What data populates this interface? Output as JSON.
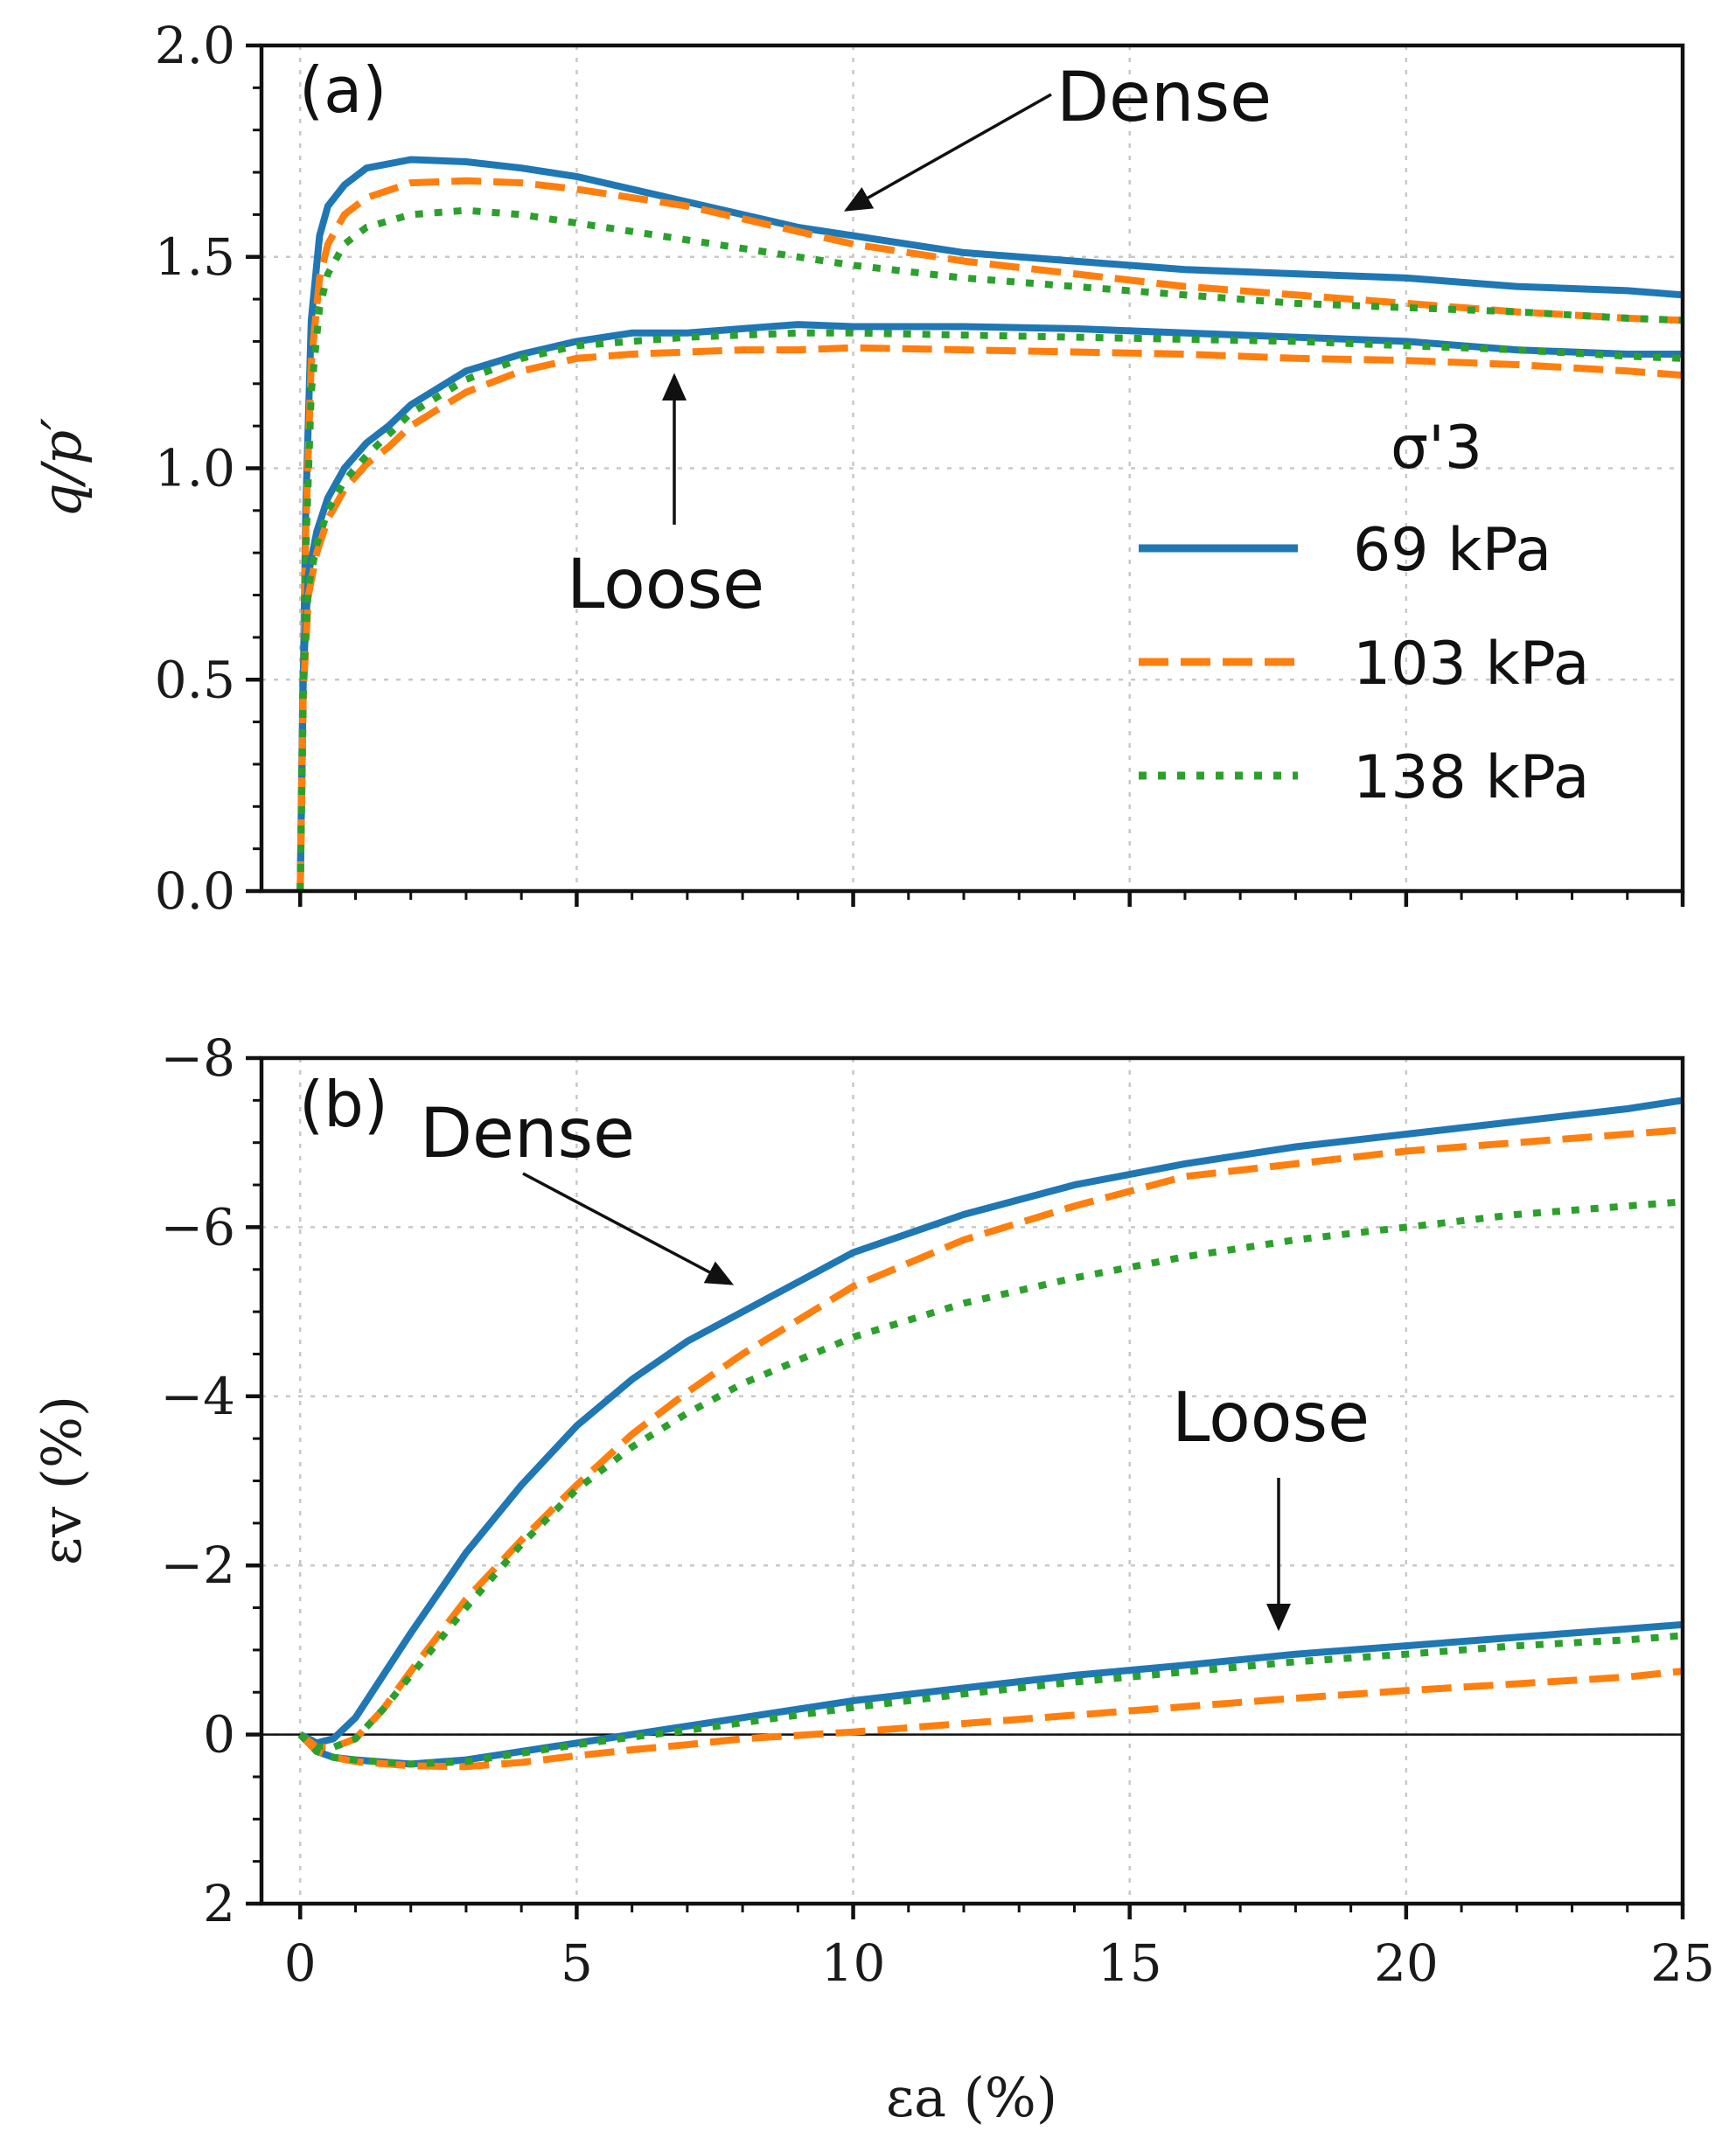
{
  "figure": {
    "xlabel": "εa (%)",
    "x_ticks": [
      "0",
      "5",
      "10",
      "15",
      "20",
      "25"
    ],
    "legend": {
      "title": "σ'3",
      "entries": [
        "69 kPa",
        "103 kPa",
        "138 kPa"
      ]
    },
    "colors": {
      "69 kPa": "#1f77b4",
      "103 kPa": "#ff7f0e",
      "138 kPa": "#2ca02c"
    }
  },
  "chart_data": [
    {
      "type": "line",
      "panel": "(a)",
      "title": "",
      "xlabel": "",
      "ylabel": "q/p′",
      "xlim": [
        -0.7,
        25
      ],
      "ylim": [
        0,
        2
      ],
      "y_ticks": [
        "0.0",
        "0.5",
        "1.0",
        "1.5",
        "2.0"
      ],
      "annotations": [
        {
          "text": "Dense",
          "arrow_to": [
            9.9,
            1.6
          ]
        },
        {
          "text": "Loose",
          "arrow_to": [
            6.6,
            1.26
          ]
        }
      ],
      "series": [
        {
          "name": "69 kPa",
          "group": "Dense",
          "x": [
            0,
            0.1,
            0.2,
            0.35,
            0.5,
            0.8,
            1.2,
            2,
            3,
            4,
            5,
            6,
            7,
            8,
            9,
            10,
            12,
            14,
            16,
            18,
            20,
            22,
            24,
            25
          ],
          "y": [
            0,
            0.9,
            1.35,
            1.55,
            1.62,
            1.67,
            1.71,
            1.73,
            1.725,
            1.71,
            1.69,
            1.66,
            1.63,
            1.6,
            1.57,
            1.55,
            1.51,
            1.49,
            1.47,
            1.46,
            1.45,
            1.43,
            1.42,
            1.41
          ]
        },
        {
          "name": "103 kPa",
          "group": "Dense",
          "x": [
            0,
            0.1,
            0.2,
            0.35,
            0.5,
            0.8,
            1.2,
            2,
            3,
            4,
            5,
            6,
            7,
            8,
            9,
            10,
            12,
            14,
            16,
            18,
            20,
            22,
            24,
            25
          ],
          "y": [
            0,
            0.85,
            1.25,
            1.45,
            1.53,
            1.6,
            1.64,
            1.675,
            1.68,
            1.675,
            1.66,
            1.64,
            1.62,
            1.59,
            1.56,
            1.53,
            1.49,
            1.46,
            1.43,
            1.41,
            1.39,
            1.37,
            1.355,
            1.35
          ]
        },
        {
          "name": "138 kPa",
          "group": "Dense",
          "x": [
            0,
            0.1,
            0.2,
            0.35,
            0.5,
            0.8,
            1.2,
            2,
            3,
            4,
            5,
            6,
            7,
            8,
            9,
            10,
            12,
            14,
            16,
            18,
            20,
            22,
            24,
            25
          ],
          "y": [
            0,
            0.8,
            1.18,
            1.38,
            1.46,
            1.53,
            1.57,
            1.6,
            1.61,
            1.6,
            1.58,
            1.56,
            1.54,
            1.52,
            1.5,
            1.48,
            1.45,
            1.43,
            1.41,
            1.39,
            1.38,
            1.37,
            1.355,
            1.35
          ]
        },
        {
          "name": "69 kPa",
          "group": "Loose",
          "x": [
            0,
            0.05,
            0.15,
            0.3,
            0.5,
            0.8,
            1.2,
            1.6,
            2,
            3,
            4,
            5,
            6,
            7,
            8,
            9,
            10,
            12,
            14,
            16,
            18,
            20,
            22,
            24,
            25
          ],
          "y": [
            0,
            0.5,
            0.75,
            0.85,
            0.93,
            1.0,
            1.06,
            1.1,
            1.15,
            1.23,
            1.27,
            1.3,
            1.32,
            1.32,
            1.33,
            1.34,
            1.335,
            1.335,
            1.33,
            1.32,
            1.31,
            1.3,
            1.28,
            1.27,
            1.27
          ]
        },
        {
          "name": "103 kPa",
          "group": "Loose",
          "x": [
            0,
            0.05,
            0.15,
            0.3,
            0.5,
            0.8,
            1.2,
            1.6,
            2,
            3,
            4,
            5,
            6,
            7,
            8,
            9,
            10,
            12,
            14,
            16,
            18,
            20,
            22,
            24,
            25
          ],
          "y": [
            0,
            0.45,
            0.7,
            0.8,
            0.88,
            0.95,
            1.01,
            1.05,
            1.1,
            1.18,
            1.23,
            1.26,
            1.27,
            1.275,
            1.28,
            1.28,
            1.285,
            1.28,
            1.275,
            1.27,
            1.26,
            1.255,
            1.245,
            1.23,
            1.22
          ]
        },
        {
          "name": "138 kPa",
          "group": "Loose",
          "x": [
            0,
            0.05,
            0.15,
            0.3,
            0.5,
            0.8,
            1.2,
            1.6,
            2,
            3,
            4,
            5,
            6,
            7,
            8,
            9,
            10,
            12,
            14,
            16,
            18,
            20,
            22,
            24,
            25
          ],
          "y": [
            0,
            0.48,
            0.72,
            0.82,
            0.9,
            0.97,
            1.03,
            1.08,
            1.13,
            1.21,
            1.26,
            1.29,
            1.3,
            1.31,
            1.315,
            1.32,
            1.32,
            1.315,
            1.31,
            1.305,
            1.3,
            1.29,
            1.28,
            1.265,
            1.26
          ]
        }
      ]
    },
    {
      "type": "line",
      "panel": "(b)",
      "title": "",
      "xlabel": "εa (%)",
      "ylabel": "εv (%)",
      "xlim": [
        -0.7,
        25
      ],
      "ylim": [
        2,
        -8
      ],
      "y_ticks": [
        "−8",
        "−6",
        "−4",
        "−2",
        "0",
        "2"
      ],
      "hline": 0,
      "annotations": [
        {
          "text": "Dense",
          "arrow_to": [
            7.9,
            -5.1
          ]
        },
        {
          "text": "Loose",
          "arrow_to": [
            17.8,
            -1.15
          ]
        }
      ],
      "series": [
        {
          "name": "69 kPa",
          "group": "Dense",
          "x": [
            0,
            0.3,
            0.6,
            1,
            1.5,
            2,
            3,
            4,
            5,
            6,
            7,
            8,
            10,
            12,
            14,
            16,
            18,
            20,
            22,
            24,
            25
          ],
          "y": [
            0,
            0.1,
            0.05,
            -0.2,
            -0.7,
            -1.2,
            -2.15,
            -2.95,
            -3.65,
            -4.2,
            -4.65,
            -5.0,
            -5.7,
            -6.15,
            -6.5,
            -6.75,
            -6.95,
            -7.1,
            -7.25,
            -7.4,
            -7.5
          ]
        },
        {
          "name": "103 kPa",
          "group": "Dense",
          "x": [
            0,
            0.3,
            0.6,
            1,
            1.5,
            2,
            3,
            4,
            5,
            6,
            7,
            8,
            10,
            12,
            14,
            16,
            18,
            20,
            22,
            24,
            25
          ],
          "y": [
            0,
            0.15,
            0.15,
            0.05,
            -0.3,
            -0.75,
            -1.6,
            -2.3,
            -2.95,
            -3.55,
            -4.05,
            -4.5,
            -5.3,
            -5.85,
            -6.25,
            -6.6,
            -6.75,
            -6.9,
            -7.0,
            -7.1,
            -7.15
          ]
        },
        {
          "name": "138 kPa",
          "group": "Dense",
          "x": [
            0,
            0.3,
            0.6,
            1,
            1.5,
            2,
            3,
            4,
            5,
            6,
            7,
            8,
            10,
            12,
            14,
            16,
            18,
            20,
            22,
            24,
            25
          ],
          "y": [
            0,
            0.15,
            0.15,
            0.05,
            -0.3,
            -0.7,
            -1.5,
            -2.25,
            -2.9,
            -3.4,
            -3.8,
            -4.15,
            -4.7,
            -5.1,
            -5.4,
            -5.65,
            -5.85,
            -6.0,
            -6.15,
            -6.25,
            -6.3
          ]
        },
        {
          "name": "69 kPa",
          "group": "Loose",
          "x": [
            0,
            0.3,
            0.6,
            1,
            2,
            3,
            4,
            5,
            6,
            7,
            8,
            10,
            12,
            14,
            16,
            18,
            20,
            22,
            24,
            25
          ],
          "y": [
            0,
            0.2,
            0.27,
            0.3,
            0.35,
            0.3,
            0.2,
            0.1,
            0.0,
            -0.1,
            -0.2,
            -0.4,
            -0.55,
            -0.7,
            -0.82,
            -0.95,
            -1.05,
            -1.15,
            -1.25,
            -1.3
          ]
        },
        {
          "name": "103 kPa",
          "group": "Loose",
          "x": [
            0,
            0.3,
            0.6,
            1,
            2,
            3,
            4,
            5,
            6,
            7,
            8,
            10,
            12,
            14,
            16,
            18,
            20,
            22,
            24,
            25
          ],
          "y": [
            0,
            0.2,
            0.27,
            0.32,
            0.37,
            0.38,
            0.33,
            0.25,
            0.18,
            0.12,
            0.05,
            -0.03,
            -0.13,
            -0.23,
            -0.33,
            -0.43,
            -0.52,
            -0.6,
            -0.68,
            -0.75
          ]
        },
        {
          "name": "138 kPa",
          "group": "Loose",
          "x": [
            0,
            0.3,
            0.6,
            1,
            2,
            3,
            4,
            5,
            6,
            7,
            8,
            10,
            12,
            14,
            16,
            18,
            20,
            22,
            24,
            25
          ],
          "y": [
            0,
            0.2,
            0.27,
            0.3,
            0.35,
            0.32,
            0.22,
            0.12,
            0.03,
            -0.05,
            -0.14,
            -0.32,
            -0.48,
            -0.62,
            -0.74,
            -0.86,
            -0.95,
            -1.05,
            -1.12,
            -1.17
          ]
        }
      ]
    }
  ]
}
